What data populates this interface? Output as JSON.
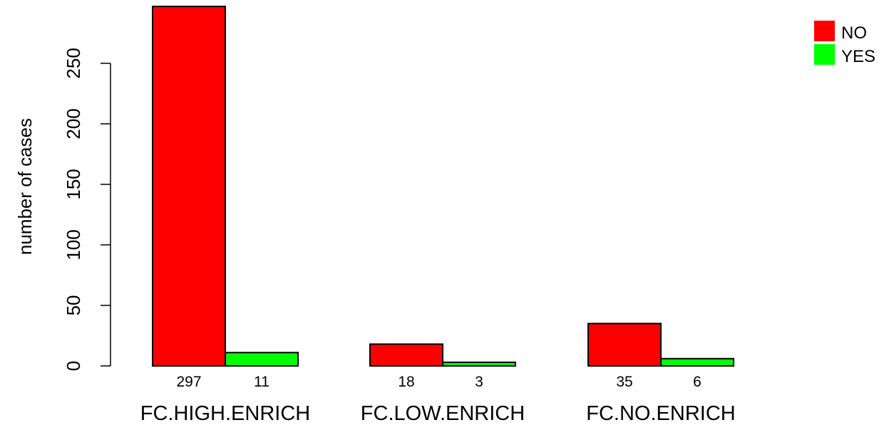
{
  "chart_data": {
    "type": "bar",
    "title": "",
    "xlabel": "",
    "ylabel": "number of cases",
    "categories": [
      "FC.HIGH.ENRICH",
      "FC.LOW.ENRICH",
      "FC.NO.ENRICH"
    ],
    "series": [
      {
        "name": "NO",
        "color": "#ff0000",
        "values": [
          297,
          18,
          35
        ]
      },
      {
        "name": "YES",
        "color": "#00ff00",
        "values": [
          11,
          3,
          6
        ]
      }
    ],
    "value_labels": [
      [
        "297",
        "11"
      ],
      [
        "18",
        "3"
      ],
      [
        "35",
        "6"
      ]
    ],
    "ylim": [
      0,
      297
    ],
    "yticks": [
      0,
      50,
      100,
      150,
      200,
      250
    ],
    "grid": false,
    "legend": {
      "position": "top-right",
      "entries": [
        "NO",
        "YES"
      ]
    }
  }
}
